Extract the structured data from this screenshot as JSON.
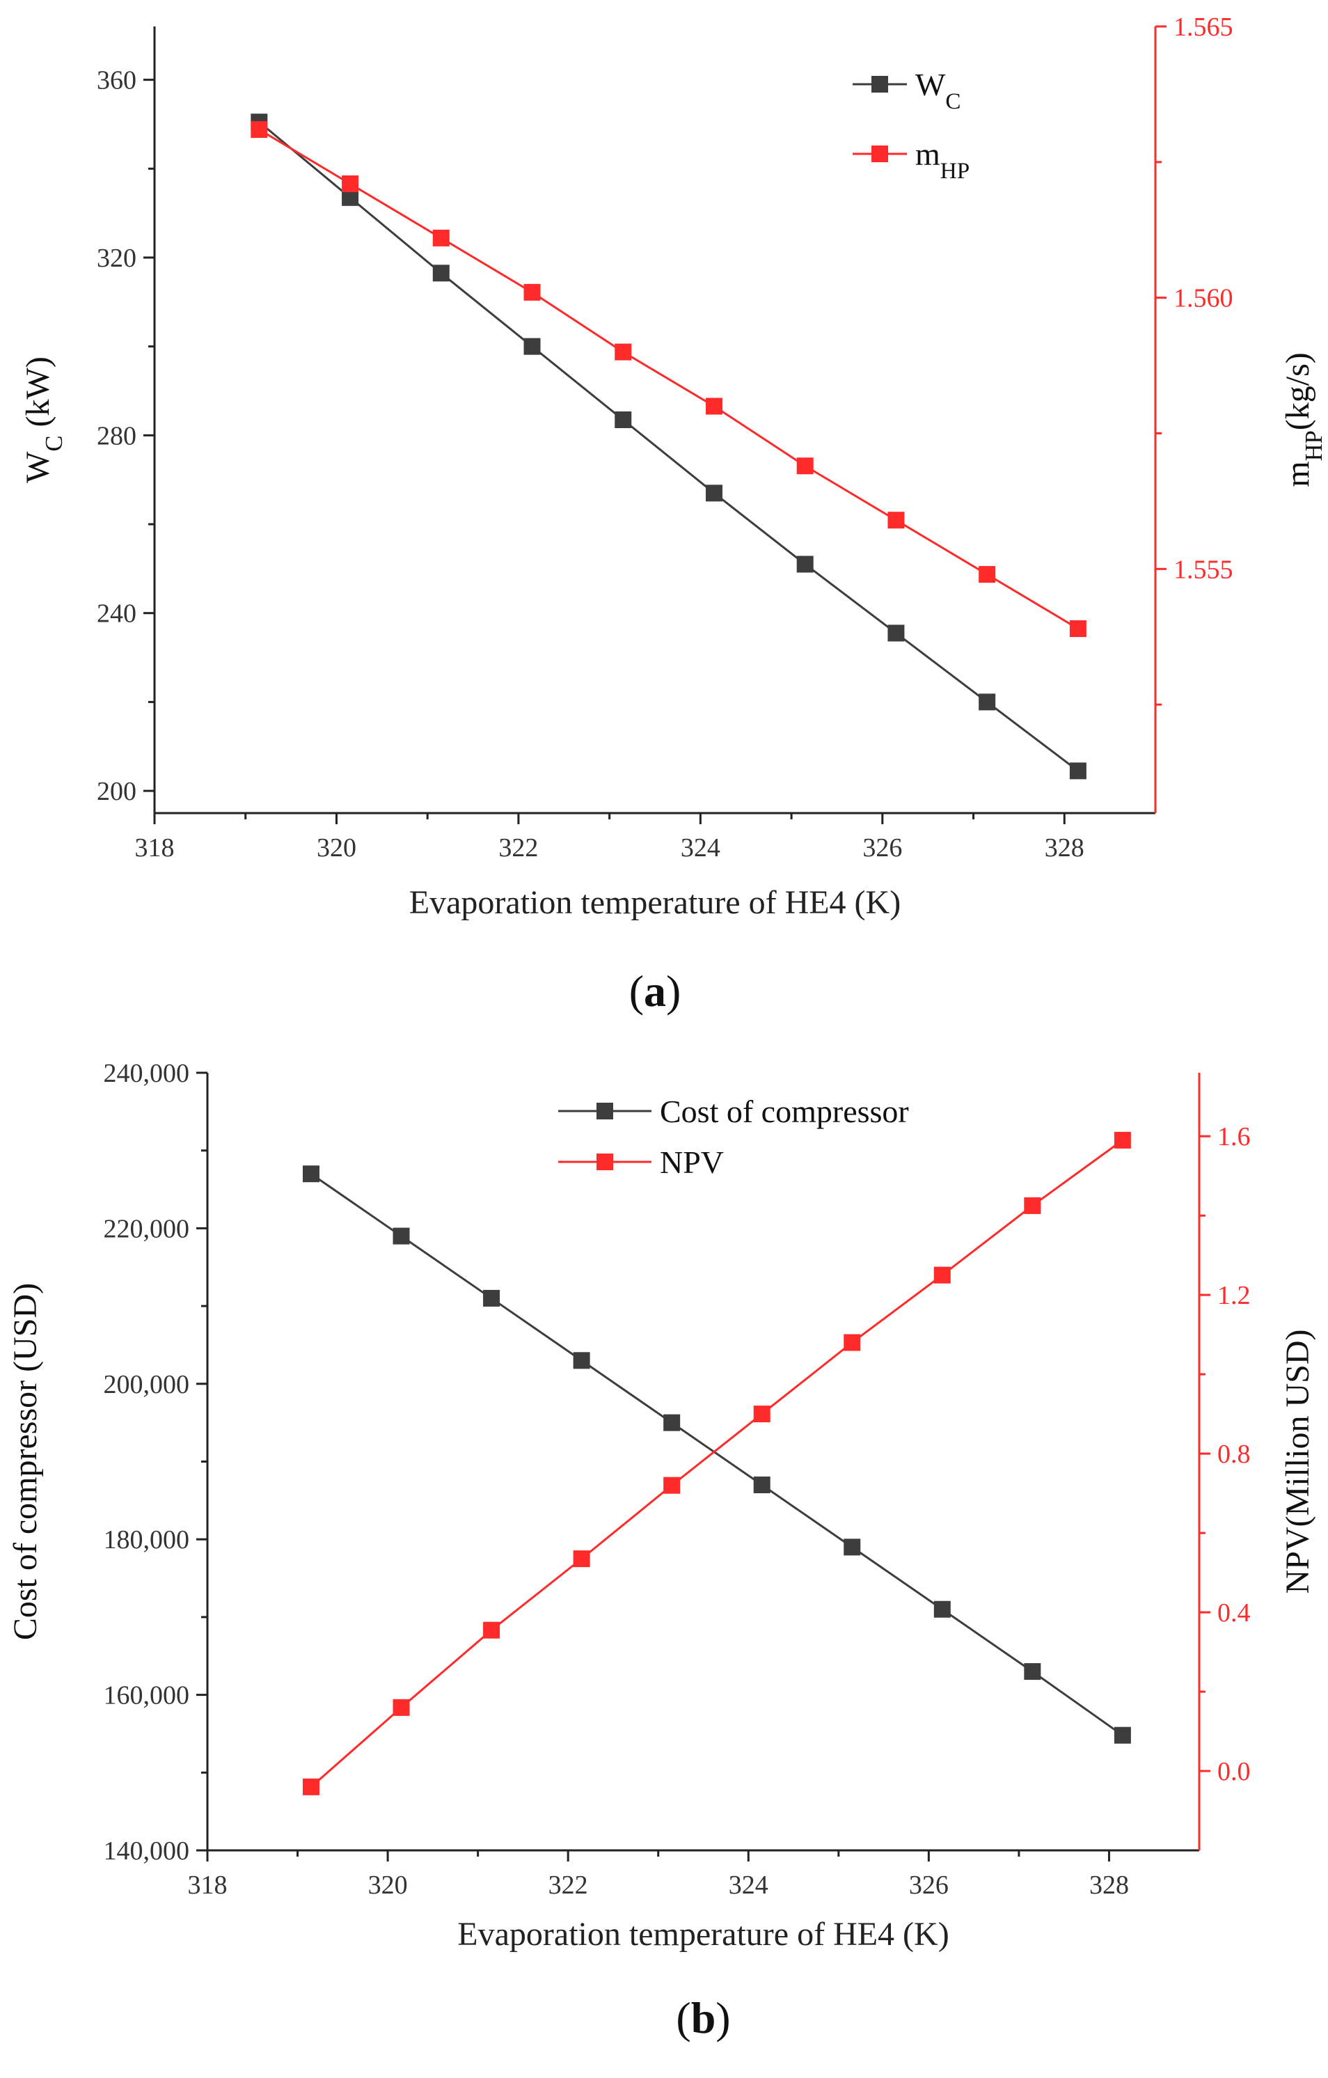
{
  "chart_data": [
    {
      "type": "line",
      "panel_label": "(a)",
      "panel_label_parts": {
        "open": "(",
        "letter": "a",
        "close": ")"
      },
      "xlabel": "Evaporation temperature of HE4 (K)",
      "ylabel": {
        "main": "W",
        "sub": "C",
        "suffix": " (kW)"
      },
      "y2label": {
        "main": "m",
        "sub": "HP",
        "suffix": "(kg/s)"
      },
      "xlim": [
        318,
        329
      ],
      "ylim": [
        195,
        372
      ],
      "y2lim": [
        1.5505,
        1.565
      ],
      "xticks": [
        318,
        320,
        322,
        324,
        326,
        328
      ],
      "xtick_labels": [
        "318",
        "320",
        "322",
        "324",
        "326",
        "328"
      ],
      "yticks": [
        200,
        240,
        280,
        320,
        360
      ],
      "ytick_labels": [
        "200",
        "240",
        "280",
        "320",
        "360"
      ],
      "y2ticks": [
        1.555,
        1.56,
        1.565
      ],
      "y2tick_labels": [
        "1.555",
        "1.560",
        "1.565"
      ],
      "x": [
        319.15,
        320.15,
        321.15,
        322.15,
        323.15,
        324.15,
        325.15,
        326.15,
        327.15,
        328.15
      ],
      "series": [
        {
          "name": {
            "main": "W",
            "sub": "C"
          },
          "axis": "left",
          "color": "#3d3d3d",
          "marker": "square",
          "values": [
            350.5,
            333.5,
            316.5,
            300.0,
            283.5,
            267.0,
            251.0,
            235.5,
            220.0,
            204.5
          ]
        },
        {
          "name": {
            "main": "m",
            "sub": "HP"
          },
          "axis": "right",
          "color": "#ff2a2a",
          "marker": "square",
          "values": [
            1.5631,
            1.5621,
            1.5611,
            1.5601,
            1.559,
            1.558,
            1.5569,
            1.5559,
            1.5549,
            1.5539
          ]
        }
      ],
      "legend_position": "top-right",
      "grid": false
    },
    {
      "type": "line",
      "panel_label": "(b)",
      "panel_label_parts": {
        "open": "(",
        "letter": "b",
        "close": ")"
      },
      "xlabel": "Evaporation temperature of HE4 (K)",
      "ylabel": {
        "main": "Cost of compressor (USD)",
        "sub": "",
        "suffix": ""
      },
      "y2label": {
        "main": "NPV(Million USD)",
        "sub": "",
        "suffix": ""
      },
      "xlim": [
        318,
        329
      ],
      "ylim": [
        140000,
        240000
      ],
      "y2lim": [
        -0.2,
        1.76
      ],
      "xticks": [
        318,
        320,
        322,
        324,
        326,
        328
      ],
      "xtick_labels": [
        "318",
        "320",
        "322",
        "324",
        "326",
        "328"
      ],
      "yticks": [
        140000,
        160000,
        180000,
        200000,
        220000,
        240000
      ],
      "ytick_labels": [
        "140,000",
        "160,000",
        "180,000",
        "200,000",
        "220,000",
        "240,000"
      ],
      "y2ticks": [
        0.0,
        0.4,
        0.8,
        1.2,
        1.6
      ],
      "y2tick_labels": [
        "0.0",
        "0.4",
        "0.8",
        "1.2",
        "1.6"
      ],
      "x": [
        319.15,
        320.15,
        321.15,
        322.15,
        323.15,
        324.15,
        325.15,
        326.15,
        327.15,
        328.15
      ],
      "series": [
        {
          "name": {
            "main": "Cost of compressor",
            "sub": ""
          },
          "axis": "left",
          "color": "#3d3d3d",
          "marker": "square",
          "values": [
            227000,
            219000,
            211000,
            203000,
            195000,
            187000,
            179000,
            171000,
            163000,
            154800
          ]
        },
        {
          "name": {
            "main": "NPV",
            "sub": ""
          },
          "axis": "right",
          "color": "#ff2a2a",
          "marker": "square",
          "values": [
            -0.04,
            0.16,
            0.355,
            0.535,
            0.72,
            0.9,
            1.08,
            1.25,
            1.425,
            1.59
          ]
        }
      ],
      "legend_position": "top-center",
      "grid": false
    }
  ]
}
